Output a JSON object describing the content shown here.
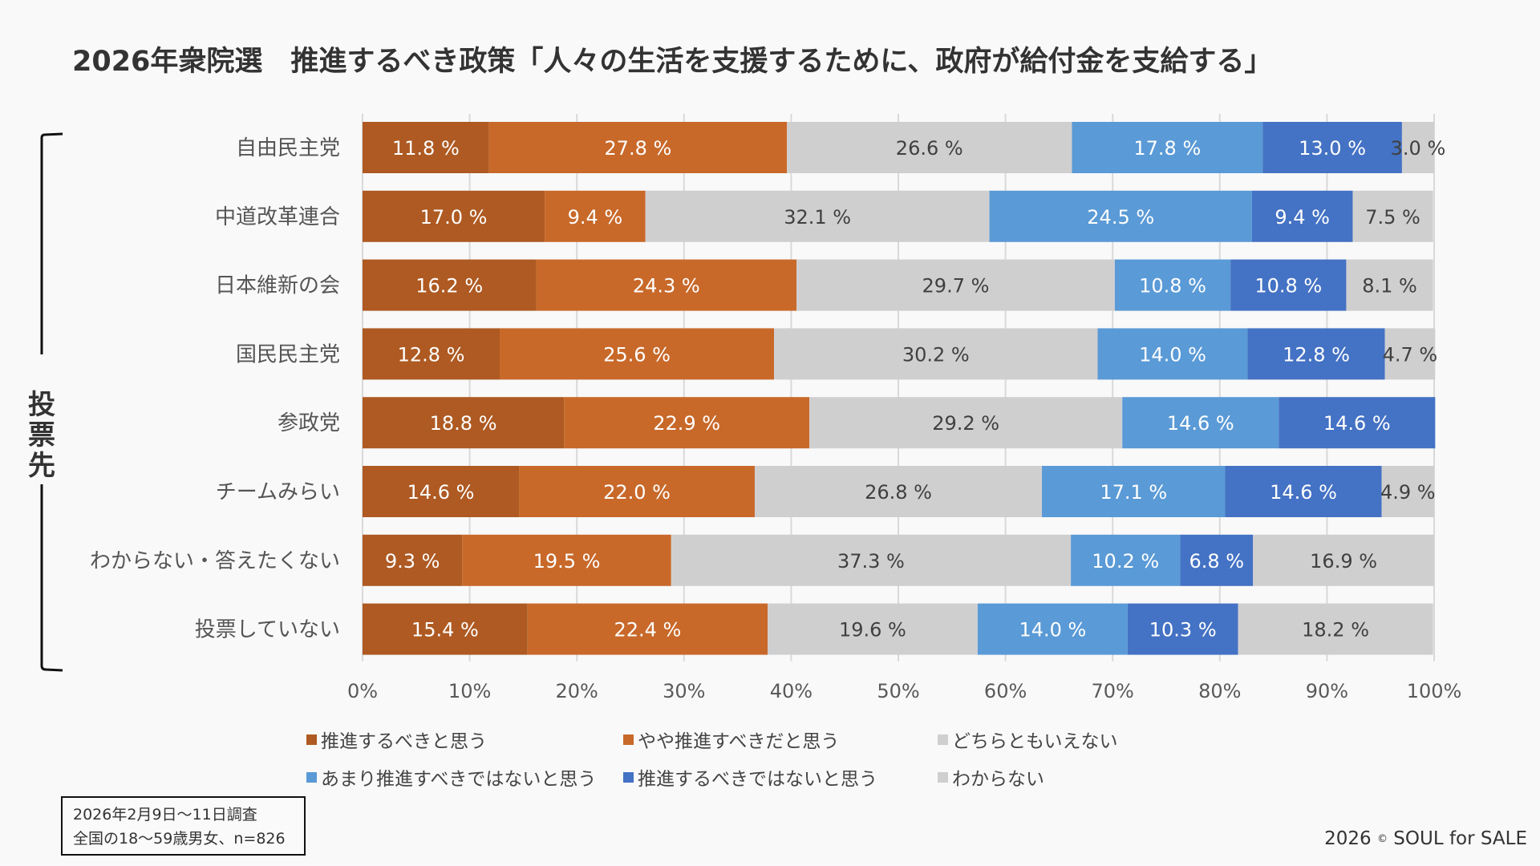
{
  "title": "2026年衆院選　推進するべき政策「人々の生活を支援するために、政府が給付金を支給する」",
  "bracket_label": [
    "投",
    "票",
    "先"
  ],
  "note": {
    "line1": "2026年2月9日〜11日調査",
    "line2": "全国の18〜59歳男女、n=826"
  },
  "copyright": {
    "year": "2026",
    "symbol": "©",
    "owner": "SOUL for SALE"
  },
  "chart_data": {
    "type": "bar",
    "orientation": "horizontal",
    "stacked": "percent",
    "title": "2026年衆院選　推進するべき政策「人々の生活を支援するために、政府が給付金を支給する」",
    "ylabel": "投票先",
    "xlabel": "",
    "xlim": [
      0,
      100
    ],
    "x_ticks": [
      "0%",
      "10%",
      "20%",
      "30%",
      "40%",
      "50%",
      "60%",
      "70%",
      "80%",
      "90%",
      "100%"
    ],
    "grid": true,
    "legend_position": "bottom",
    "categories": [
      "自由民主党",
      "中道改革連合",
      "日本維新の会",
      "国民民主党",
      "参政党",
      "チームみらい",
      "わからない・答えたくない",
      "投票していない"
    ],
    "series": [
      {
        "name": "推進するべきと思う",
        "color": "#ae5a22",
        "label_color": "#ffffff",
        "values": [
          11.8,
          17.0,
          16.2,
          12.8,
          18.8,
          14.6,
          9.3,
          15.4
        ]
      },
      {
        "name": "やや推進すべきだと思う",
        "color": "#c8692a",
        "label_color": "#ffffff",
        "values": [
          27.8,
          9.4,
          24.3,
          25.6,
          22.9,
          22.0,
          19.5,
          22.4
        ]
      },
      {
        "name": "どちらともいえない",
        "color": "#d0cfd0",
        "label_color": "#404040",
        "values": [
          26.6,
          32.1,
          29.7,
          30.2,
          29.2,
          26.8,
          37.3,
          19.6
        ]
      },
      {
        "name": "あまり推進すべきではないと思う",
        "color": "#5a9ad6",
        "label_color": "#ffffff",
        "values": [
          17.8,
          24.5,
          10.8,
          14.0,
          14.6,
          17.1,
          10.2,
          14.0
        ]
      },
      {
        "name": "推進するべきではないと思う",
        "color": "#4472c4",
        "label_color": "#ffffff",
        "values": [
          13.0,
          9.4,
          10.8,
          12.8,
          14.6,
          14.6,
          6.8,
          10.3
        ]
      },
      {
        "name": "わからない",
        "color": "#d0cfd0",
        "label_color": "#404040",
        "values": [
          3.0,
          7.5,
          8.1,
          4.7,
          0,
          4.9,
          16.9,
          18.2
        ]
      }
    ],
    "value_suffix": " %"
  }
}
